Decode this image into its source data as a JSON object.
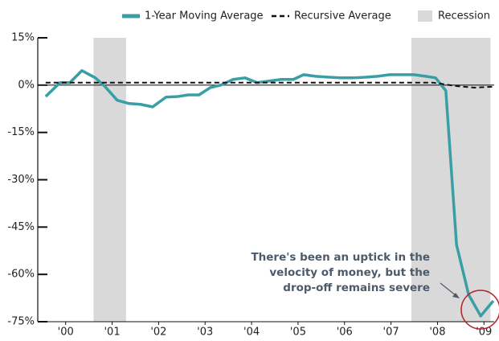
{
  "chart_data": {
    "type": "line",
    "xlim": [
      1999.9,
      2009.72
    ],
    "ylim": [
      -75,
      15
    ],
    "yticks": [
      {
        "value": 15,
        "label": "15%"
      },
      {
        "value": 0,
        "label": "0%"
      },
      {
        "value": -15,
        "label": "-15%"
      },
      {
        "value": -30,
        "label": "-30%"
      },
      {
        "value": -45,
        "label": "-45%"
      },
      {
        "value": -60,
        "label": "-60%"
      },
      {
        "value": -75,
        "label": "-75%"
      }
    ],
    "xticks": [
      {
        "value": 2000.5,
        "label": "'00"
      },
      {
        "value": 2001.5,
        "label": "'01"
      },
      {
        "value": 2002.5,
        "label": "'02"
      },
      {
        "value": 2003.5,
        "label": "'03"
      },
      {
        "value": 2004.5,
        "label": "'04"
      },
      {
        "value": 2005.5,
        "label": "'05"
      },
      {
        "value": 2006.5,
        "label": "'06"
      },
      {
        "value": 2007.5,
        "label": "'07"
      },
      {
        "value": 2008.5,
        "label": "'08"
      },
      {
        "value": 2009.5,
        "label": "'09"
      }
    ],
    "recession": {
      "name": "Recession",
      "color": "#d9d9d9",
      "spans": [
        [
          2001.1,
          2001.8
        ],
        [
          2007.94,
          2009.64
        ]
      ]
    },
    "series": [
      {
        "name": "1-Year Moving Average",
        "color": "#3a9ea5",
        "dashed": false,
        "x": [
          2000.07,
          2000.38,
          2000.59,
          2000.85,
          2001.14,
          2001.35,
          2001.61,
          2001.85,
          2002.11,
          2002.37,
          2002.66,
          2002.92,
          2003.14,
          2003.37,
          2003.61,
          2003.84,
          2004.1,
          2004.36,
          2004.62,
          2004.88,
          2005.14,
          2005.4,
          2005.62,
          2005.88,
          2006.17,
          2006.43,
          2006.69,
          2006.95,
          2007.21,
          2007.47,
          2007.73,
          2007.99,
          2008.25,
          2008.46,
          2008.68,
          2008.91,
          2009.17,
          2009.43,
          2009.7
        ],
        "values": [
          -3.6,
          0.8,
          0.8,
          4.6,
          2.3,
          -0.5,
          -4.8,
          -5.8,
          -6.1,
          -6.9,
          -3.8,
          -3.6,
          -3.1,
          -3.1,
          -0.8,
          0,
          1.8,
          2.3,
          0.8,
          1.3,
          1.8,
          1.8,
          3.3,
          2.8,
          2.5,
          2.3,
          2.3,
          2.5,
          2.8,
          3.3,
          3.3,
          3.3,
          2.8,
          2.3,
          -1.8,
          -50.6,
          -66.4,
          -73.2,
          -68.4
        ]
      },
      {
        "name": "Recursive Average",
        "color": "#111111",
        "dashed": true,
        "x": [
          2000.07,
          2008.4,
          2008.9,
          2009.3,
          2009.7
        ],
        "values": [
          0.8,
          0.8,
          -0.3,
          -0.8,
          -0.5
        ]
      }
    ],
    "annotation": [
      "There's been an uptick in the",
      "velocity of money, but the",
      "drop-off remains severe"
    ]
  }
}
